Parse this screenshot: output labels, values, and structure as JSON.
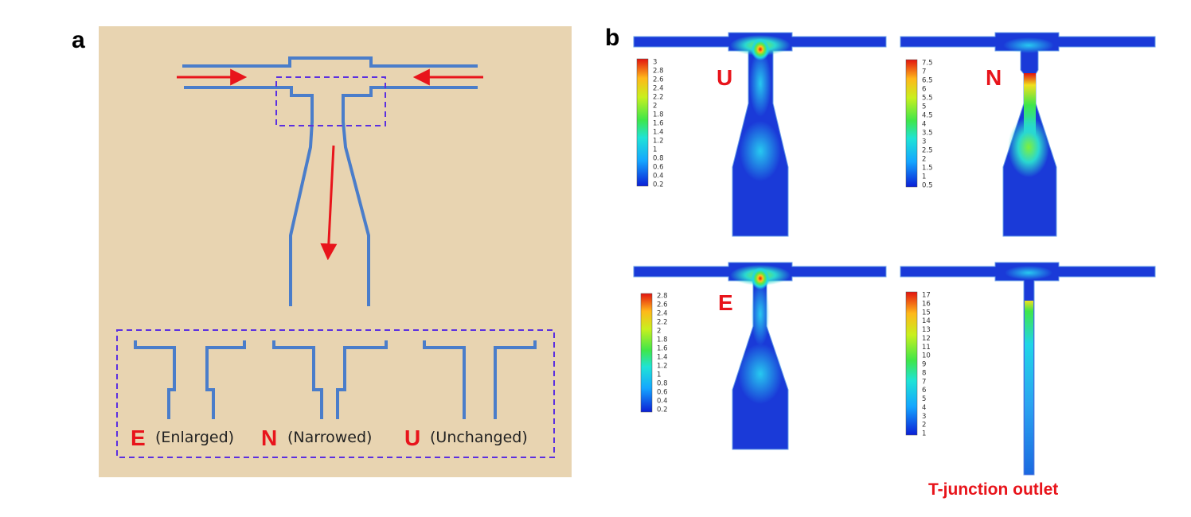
{
  "colors": {
    "accent": "#e8141b",
    "channel": "#4a7dca",
    "dashed_box": "#5b2fe0",
    "panel_bg": "#e8d4b1",
    "fluid_base": "#1a3ad8"
  },
  "panel_a": {
    "letter": "a",
    "variants": [
      {
        "letter": "E",
        "caption": "(Enlarged)"
      },
      {
        "letter": "N",
        "caption": "(Narrowed)"
      },
      {
        "letter": "U",
        "caption": "(Unchanged)"
      }
    ]
  },
  "panel_b": {
    "letter": "b",
    "sims": [
      {
        "letter": "U",
        "scale": [
          "3",
          "2.8",
          "2.6",
          "2.4",
          "2.2",
          "2",
          "1.8",
          "1.6",
          "1.4",
          "1.2",
          "1",
          "0.8",
          "0.6",
          "0.4",
          "0.2"
        ]
      },
      {
        "letter": "N",
        "scale": [
          "7.5",
          "7",
          "6.5",
          "6",
          "5.5",
          "5",
          "4.5",
          "4",
          "3.5",
          "3",
          "2.5",
          "2",
          "1.5",
          "1",
          "0.5"
        ]
      },
      {
        "letter": "E",
        "scale": [
          "2.8",
          "2.6",
          "2.4",
          "2.2",
          "2",
          "1.8",
          "1.6",
          "1.4",
          "1.2",
          "1",
          "0.8",
          "0.6",
          "0.4",
          "0.2"
        ]
      },
      {
        "letter": "",
        "scale": [
          "17",
          "16",
          "15",
          "14",
          "13",
          "12",
          "11",
          "10",
          "9",
          "8",
          "7",
          "6",
          "5",
          "4",
          "3",
          "2",
          "1"
        ]
      }
    ],
    "outlet_label": "T-junction outlet"
  }
}
